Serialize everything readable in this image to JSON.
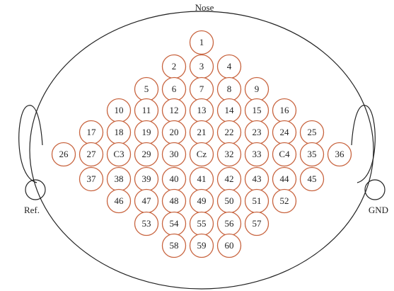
{
  "labels": {
    "nose": "Nose",
    "ref": "Ref.",
    "gnd": "GND"
  },
  "electrodes": [
    [
      "1"
    ],
    [
      "2",
      "3",
      "4"
    ],
    [
      "5",
      "6",
      "7",
      "8",
      "9"
    ],
    [
      "10",
      "11",
      "12",
      "13",
      "14",
      "15",
      "16"
    ],
    [
      "17",
      "18",
      "19",
      "20",
      "21",
      "22",
      "23",
      "24",
      "25"
    ],
    [
      "26",
      "27",
      "C3",
      "29",
      "30",
      "Cz",
      "32",
      "33",
      "C4",
      "35",
      "36"
    ],
    [
      "37",
      "38",
      "39",
      "40",
      "41",
      "42",
      "43",
      "44",
      "45"
    ],
    [
      "46",
      "47",
      "48",
      "49",
      "50",
      "51",
      "52"
    ],
    [
      "53",
      "54",
      "55",
      "56",
      "57"
    ],
    [
      "58",
      "59",
      "60"
    ]
  ]
}
